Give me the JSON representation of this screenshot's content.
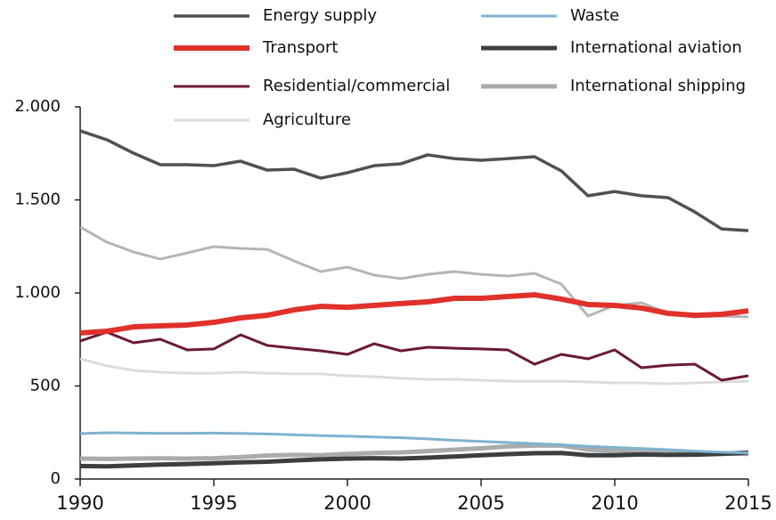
{
  "chart_data": {
    "type": "line",
    "x": [
      1990,
      1991,
      1992,
      1993,
      1994,
      1995,
      1996,
      1997,
      1998,
      1999,
      2000,
      2001,
      2002,
      2003,
      2004,
      2005,
      2006,
      2007,
      2008,
      2009,
      2010,
      2011,
      2012,
      2013,
      2014,
      2015
    ],
    "xlim": [
      1990,
      2015
    ],
    "xticks": [
      1990,
      1995,
      2000,
      2005,
      2010,
      2015
    ],
    "ylim": [
      0,
      2000
    ],
    "yticks": [
      0,
      500,
      {
        "value": 1000,
        "label": "1.000"
      },
      {
        "value": 1500,
        "label": "1.500"
      },
      {
        "value": 2000,
        "label": "2.000"
      }
    ],
    "grid": false,
    "legend": "top",
    "series": [
      {
        "name": "Energy supply",
        "color": "#4d5256",
        "line_width": 3.5,
        "values": [
          1871,
          1823,
          1751,
          1689,
          1689,
          1684,
          1708,
          1660,
          1665,
          1617,
          1646,
          1684,
          1694,
          1742,
          1722,
          1713,
          1722,
          1732,
          1656,
          1522,
          1545,
          1522,
          1512,
          1435,
          1344,
          1335
        ]
      },
      {
        "name": "Waste",
        "color": "#7fb2d0",
        "line_width": 3,
        "values": [
          244,
          249,
          247,
          246,
          246,
          247,
          245,
          242,
          238,
          233,
          230,
          226,
          222,
          216,
          208,
          202,
          196,
          190,
          184,
          176,
          170,
          164,
          158,
          150,
          144,
          140
        ]
      },
      {
        "name": "Transport",
        "color": "#e0312b",
        "line_width": 6,
        "values": [
          785,
          794,
          818,
          823,
          828,
          842,
          866,
          880,
          909,
          928,
          923,
          933,
          943,
          952,
          971,
          971,
          981,
          990,
          967,
          938,
          933,
          919,
          890,
          880,
          885,
          904
        ]
      },
      {
        "name": "International aviation",
        "color": "#3b3f42",
        "line_width": 5,
        "values": [
          70,
          68,
          73,
          78,
          81,
          85,
          90,
          93,
          100,
          106,
          110,
          112,
          110,
          115,
          121,
          128,
          134,
          139,
          140,
          128,
          128,
          132,
          130,
          131,
          135,
          142
        ]
      },
      {
        "name": "Residential/commercial",
        "color": "#6b1a35",
        "line_width": 3,
        "values": [
          742,
          789,
          732,
          751,
          694,
          699,
          775,
          718,
          703,
          689,
          670,
          727,
          689,
          708,
          703,
          699,
          694,
          617,
          670,
          646,
          694,
          598,
          612,
          617,
          531,
          555
        ]
      },
      {
        "name": "International shipping",
        "color": "#a9abad",
        "line_width": 5,
        "values": [
          110,
          108,
          110,
          111,
          110,
          112,
          118,
          126,
          130,
          128,
          135,
          140,
          143,
          150,
          158,
          165,
          175,
          180,
          180,
          158,
          152,
          150,
          140,
          138,
          138,
          135
        ]
      },
      {
        "name": "Agriculture",
        "color": "#dcdcdc",
        "line_width": 3,
        "values": [
          646,
          608,
          584,
          574,
          569,
          569,
          574,
          569,
          565,
          565,
          555,
          550,
          541,
          536,
          536,
          531,
          526,
          526,
          526,
          522,
          517,
          517,
          512,
          517,
          522,
          526
        ]
      },
      {
        "color": "#b3b5b7",
        "line_width": 3,
        "values": [
          1354,
          1273,
          1220,
          1182,
          1215,
          1249,
          1239,
          1234,
          1172,
          1115,
          1139,
          1096,
          1077,
          1100,
          1115,
          1100,
          1091,
          1105,
          1048,
          876,
          933,
          947,
          890,
          871,
          876,
          871
        ]
      }
    ]
  }
}
